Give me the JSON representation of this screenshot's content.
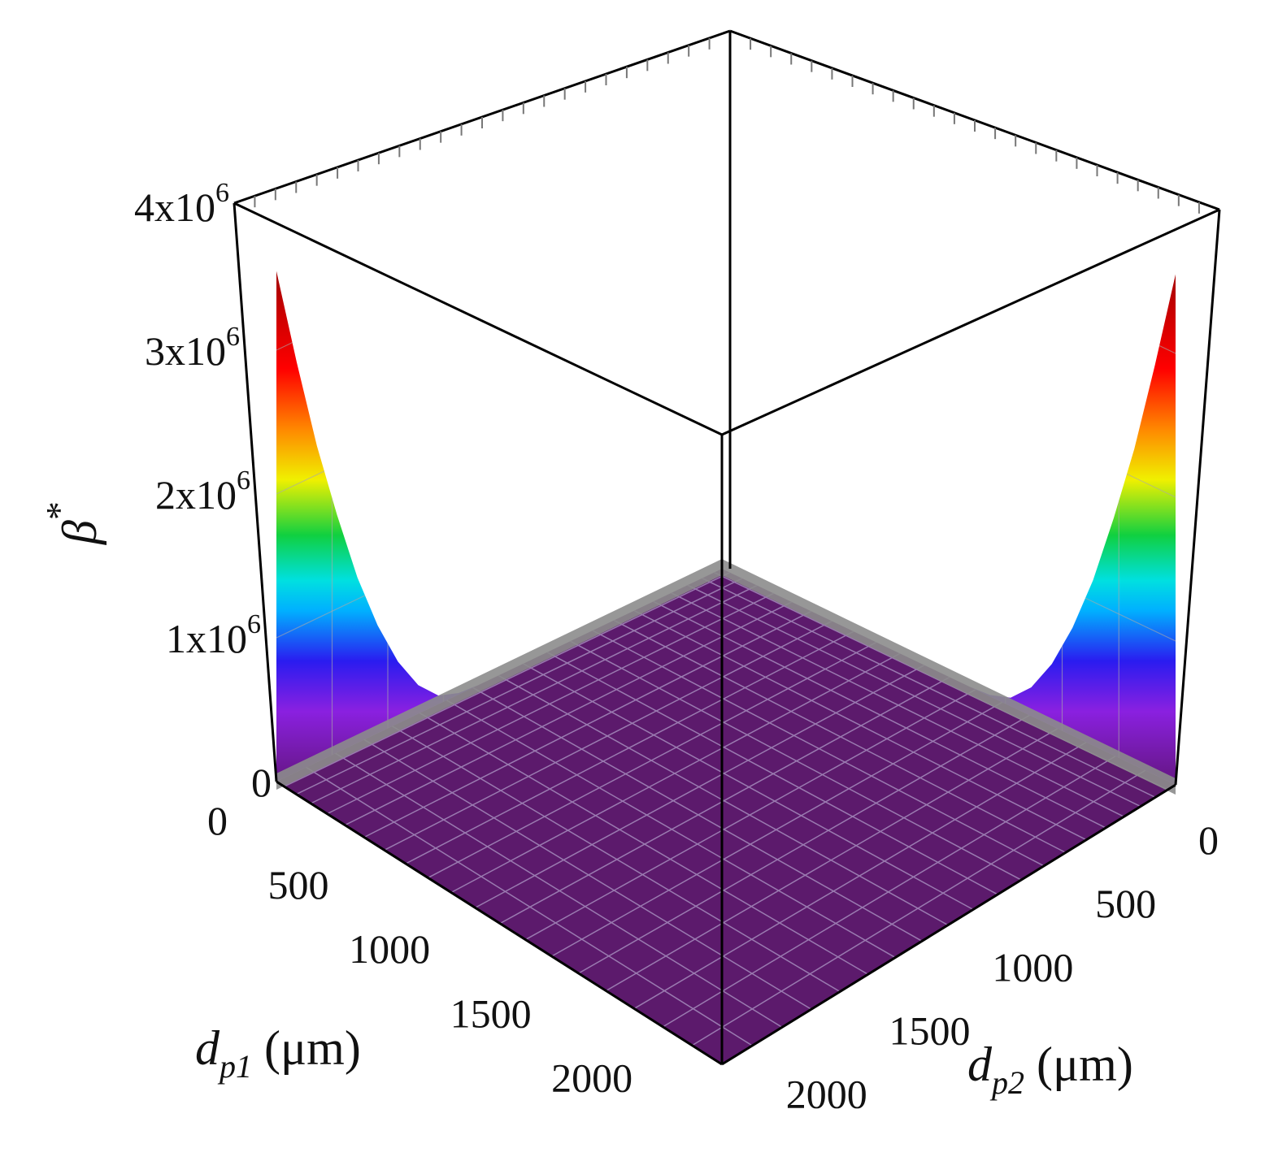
{
  "chart_data": {
    "type": "surface",
    "title": "",
    "x_axis": {
      "label_main": "d",
      "label_sub": "p1",
      "label_unit": " (μm)",
      "range": [
        0,
        2200
      ],
      "ticks": [
        {
          "value": 0,
          "label": "0"
        },
        {
          "value": 500,
          "label": "500"
        },
        {
          "value": 1000,
          "label": "1000"
        },
        {
          "value": 1500,
          "label": "1500"
        },
        {
          "value": 2000,
          "label": "2000"
        }
      ]
    },
    "y_axis": {
      "label_main": "d",
      "label_sub": "p2",
      "label_unit": " (μm)",
      "range": [
        0,
        2200
      ],
      "ticks": [
        {
          "value": 0,
          "label": "0"
        },
        {
          "value": 500,
          "label": "500"
        },
        {
          "value": 1000,
          "label": "1000"
        },
        {
          "value": 1500,
          "label": "1500"
        },
        {
          "value": 2000,
          "label": "2000"
        }
      ]
    },
    "z_axis": {
      "label_main": "β",
      "label_sup": "*",
      "range": [
        0,
        4000000
      ],
      "ticks": [
        {
          "value": 0,
          "label": "0",
          "mantissa": "0",
          "exp": ""
        },
        {
          "value": 1000000,
          "label": "1x10^6",
          "mantissa": "1x10",
          "exp": "6"
        },
        {
          "value": 2000000,
          "label": "2x10^6",
          "mantissa": "2x10",
          "exp": "6"
        },
        {
          "value": 3000000,
          "label": "3x10^6",
          "mantissa": "3x10",
          "exp": "6"
        },
        {
          "value": 4000000,
          "label": "4x10^6",
          "mantissa": "4x10",
          "exp": "6"
        }
      ]
    },
    "edge_profile_dp1": {
      "description_of_values": "beta* along the dp2 = 0 edge",
      "x": [
        0,
        100,
        200,
        300,
        400,
        500,
        600,
        700,
        800,
        900,
        1000,
        1100
      ],
      "z": [
        3550000,
        2850000,
        2200000,
        1650000,
        1150000,
        750000,
        430000,
        200000,
        60000,
        10000,
        0,
        0
      ]
    },
    "edge_profile_dp2": {
      "description_of_values": "beta* along the dp1 = 0 edge",
      "x": [
        0,
        100,
        200,
        300,
        400,
        500,
        600,
        700,
        800,
        900,
        1000,
        1100
      ],
      "z": [
        3550000,
        2850000,
        2200000,
        1650000,
        1150000,
        750000,
        430000,
        200000,
        60000,
        10000,
        0,
        0
      ]
    },
    "floor_value": 0,
    "colormap": [
      "#5a1670",
      "#7a1ab0",
      "#2e1cf0",
      "#00c8ff",
      "#12d240",
      "#f6f000",
      "#ff7a00",
      "#ff0000",
      "#a80000"
    ],
    "grid": true
  }
}
